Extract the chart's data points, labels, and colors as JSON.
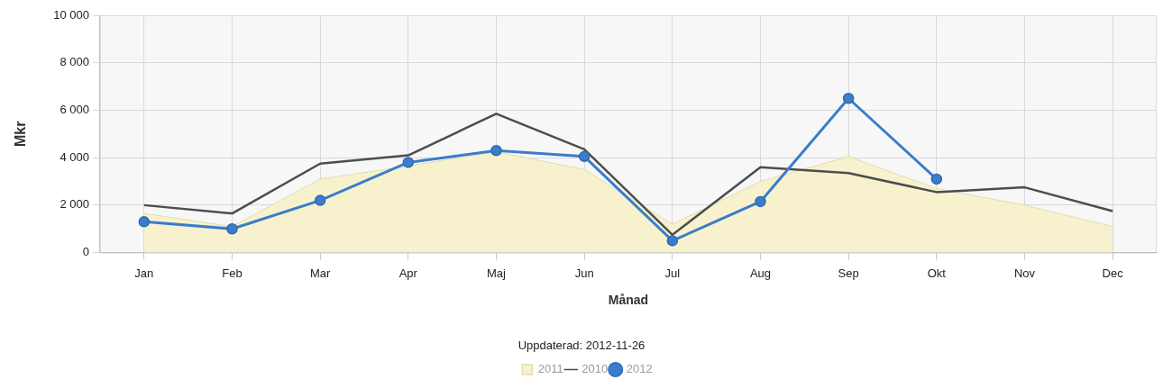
{
  "chart_data": {
    "type": "line",
    "xlabel": "Månad",
    "ylabel": "Mkr",
    "categories": [
      "Jan",
      "Feb",
      "Mar",
      "Apr",
      "Maj",
      "Jun",
      "Jul",
      "Aug",
      "Sep",
      "Okt",
      "Nov",
      "Dec"
    ],
    "series": [
      {
        "name": "2011",
        "type": "area",
        "color": "#f7f2cd",
        "marker": "none",
        "values": [
          1650,
          1100,
          3100,
          3650,
          4250,
          3500,
          1200,
          3000,
          4050,
          2700,
          2000,
          1100
        ]
      },
      {
        "name": "2010",
        "type": "line",
        "color": "#4d4d4d",
        "marker": "none",
        "values": [
          2000,
          1650,
          3750,
          4100,
          5850,
          4350,
          750,
          3600,
          3350,
          2550,
          2750,
          1750
        ]
      },
      {
        "name": "2012",
        "type": "line",
        "color": "#3a7dcb",
        "marker": "circle",
        "values": [
          1300,
          1000,
          2200,
          3800,
          4300,
          4050,
          500,
          2150,
          6500,
          3100,
          null,
          null
        ]
      }
    ],
    "ylim": [
      0,
      10000
    ],
    "yticks": [
      0,
      {
        "value": 2000,
        "label": "2 000"
      },
      {
        "value": 4000,
        "label": "4 000"
      },
      {
        "value": 6000,
        "label": "6 000"
      },
      {
        "value": 8000,
        "label": "8 000"
      },
      {
        "value": 10000,
        "label": "10 000"
      }
    ],
    "grid": true,
    "legend": "bottom",
    "annotations": [
      "Uppdaterad: 2012-11-26"
    ]
  }
}
